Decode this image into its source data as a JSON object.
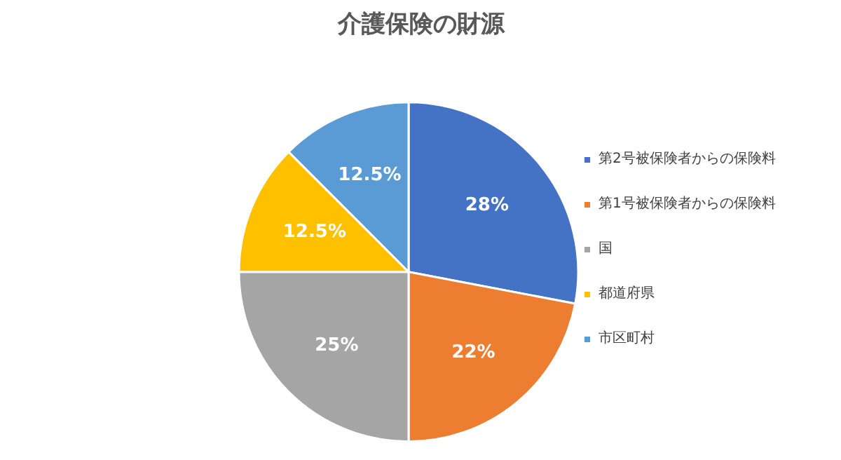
{
  "chart_data": {
    "type": "pie",
    "title": "介護保険の財源",
    "categories": [
      "第2号被保険者からの保険料",
      "第1号被保険者からの保険料",
      "国",
      "都道府県",
      "市区町村"
    ],
    "values": [
      28,
      22,
      25,
      12.5,
      12.5
    ],
    "colors": [
      "#4472c4",
      "#ed7d31",
      "#a5a5a5",
      "#ffc000",
      "#5b9bd5"
    ],
    "value_labels": [
      "28%",
      "22%",
      "25%",
      "12.5%",
      "12.5%"
    ],
    "legend": "right"
  }
}
